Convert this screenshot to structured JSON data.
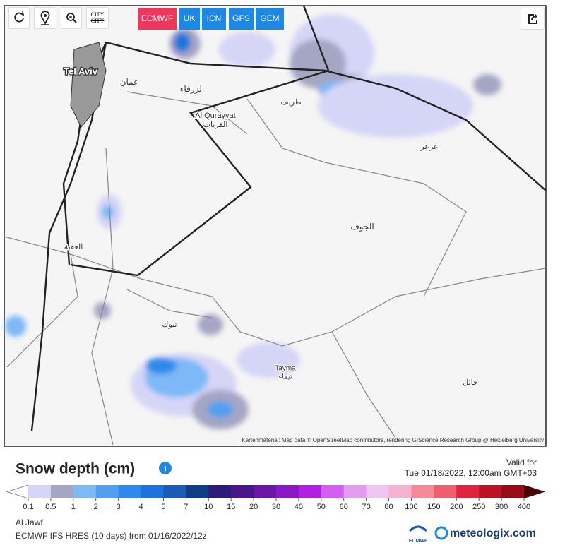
{
  "toolbar": {
    "city_button": "CITY",
    "models": [
      "ECMWF",
      "UK",
      "ICN",
      "GFS",
      "GEM"
    ],
    "active_model": "ECMWF"
  },
  "map": {
    "cities": [
      "Tel Aviv",
      "عمان",
      "الزرقاء",
      "طريف",
      "Al Qurayyat",
      "القريات",
      "عرعر",
      "الجوف",
      "العقبة",
      "تبوك",
      "Tayma",
      "تيماء",
      "حائل"
    ],
    "attribution": "Kartenmaterial: Map data © OpenStreetMap contributors, rendering GIScience Research Group @ Heidelberg University"
  },
  "legend": {
    "title": "Snow depth (cm)",
    "valid_label": "Valid for",
    "valid_time": "Tue 01/18/2022, 12:00am GMT+03",
    "ticks": [
      0.1,
      0.5,
      1,
      2,
      3,
      4,
      5,
      7,
      10,
      15,
      20,
      30,
      40,
      50,
      60,
      70,
      80,
      100,
      150,
      200,
      250,
      300,
      400
    ],
    "colors": [
      "#d5d5f7",
      "#a5a5c4",
      "#7db8f7",
      "#529ff2",
      "#2f89ec",
      "#1c73dd",
      "#1a5bb5",
      "#0f3e87",
      "#2c1b7a",
      "#4a1589",
      "#6b14a6",
      "#8e17c5",
      "#b21ee3",
      "#d35ef0",
      "#e49bf2",
      "#efc6f3",
      "#f6b3cd",
      "#f5899a",
      "#ee5e6f",
      "#e0243f",
      "#bc1225",
      "#960b17"
    ]
  },
  "footer": {
    "location": "Al Jawf",
    "model_run": "ECMWF IFS HRES (10 days) from 01/16/2022/12z",
    "logo_ecmwf": "ECMWF",
    "logo_brand": "meteologix.com"
  }
}
